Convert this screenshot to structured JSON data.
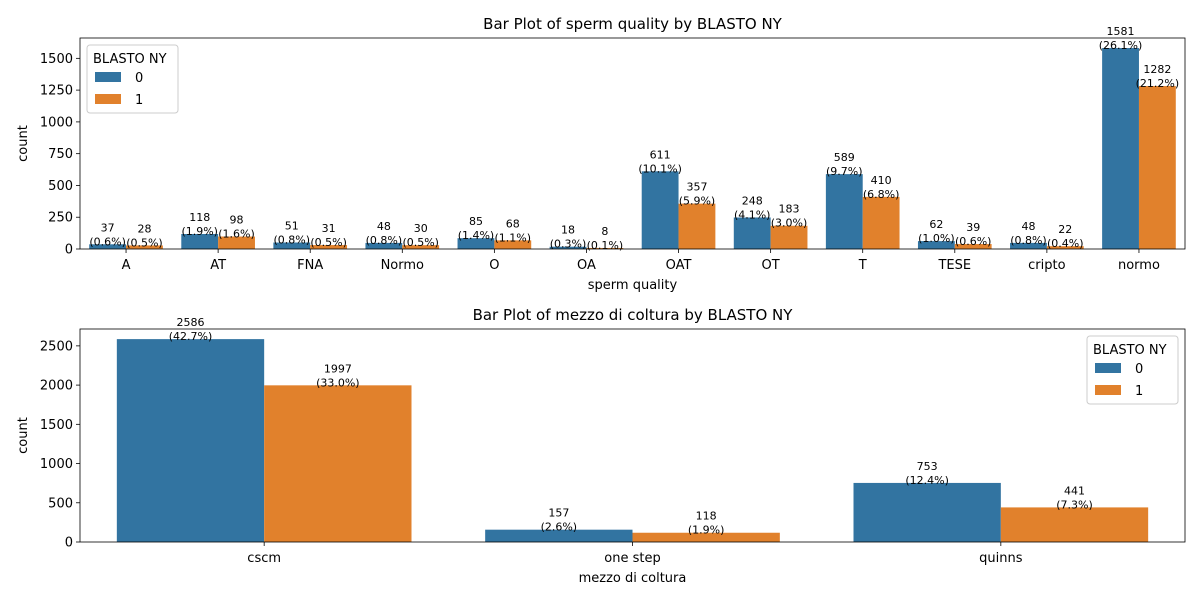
{
  "chart_data": [
    {
      "type": "bar",
      "title": "Bar Plot of sperm quality by BLASTO NY",
      "xlabel": "sperm quality",
      "ylabel": "count",
      "ylim": [
        0,
        1660
      ],
      "yticks": [
        0,
        250,
        500,
        750,
        1000,
        1250,
        1500
      ],
      "categories": [
        "A",
        "AT",
        "FNA",
        "Normo",
        "O",
        "OA",
        "OAT",
        "OT",
        "T",
        "TESE",
        "cripto",
        "normo"
      ],
      "legend": {
        "title": "BLASTO NY",
        "position": "top-left"
      },
      "series": [
        {
          "name": "0",
          "color": "#3274a1",
          "values": [
            37,
            118,
            51,
            48,
            85,
            18,
            611,
            248,
            589,
            62,
            48,
            1581
          ],
          "percents": [
            "(0.6%)",
            "(1.9%)",
            "(0.8%)",
            "(0.8%)",
            "(1.4%)",
            "(0.3%)",
            "(10.1%)",
            "(4.1%)",
            "(9.7%)",
            "(1.0%)",
            "(0.8%)",
            "(26.1%)"
          ]
        },
        {
          "name": "1",
          "color": "#e1812c",
          "values": [
            28,
            98,
            31,
            30,
            68,
            8,
            357,
            183,
            410,
            39,
            22,
            1282
          ],
          "percents": [
            "(0.5%)",
            "(1.6%)",
            "(0.5%)",
            "(0.5%)",
            "(1.1%)",
            "(0.1%)",
            "(5.9%)",
            "(3.0%)",
            "(6.8%)",
            "(0.6%)",
            "(0.4%)",
            "(21.2%)"
          ]
        }
      ]
    },
    {
      "type": "bar",
      "title": "Bar Plot of mezzo di coltura by BLASTO NY",
      "xlabel": "mezzo di coltura",
      "ylabel": "count",
      "ylim": [
        0,
        2715
      ],
      "yticks": [
        0,
        500,
        1000,
        1500,
        2000,
        2500
      ],
      "categories": [
        "cscm",
        "one step",
        "quinns"
      ],
      "legend": {
        "title": "BLASTO NY",
        "position": "top-right"
      },
      "series": [
        {
          "name": "0",
          "color": "#3274a1",
          "values": [
            2586,
            157,
            753
          ],
          "percents": [
            "(42.7%)",
            "(2.6%)",
            "(12.4%)"
          ]
        },
        {
          "name": "1",
          "color": "#e1812c",
          "values": [
            1997,
            118,
            441
          ],
          "percents": [
            "(33.0%)",
            "(1.9%)",
            "(7.3%)"
          ]
        }
      ]
    }
  ]
}
